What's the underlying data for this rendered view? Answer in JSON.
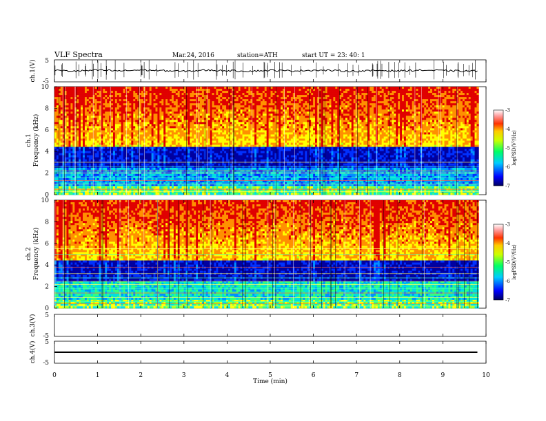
{
  "header": {
    "title": "VLF  Spectra",
    "date": "Mar.24, 2016",
    "station": "station=ATH",
    "start": "start  UT =   23: 40: 1"
  },
  "chart_data": [
    {
      "type": "line",
      "ylabel": "ch.1(V)",
      "ylim": [
        -5,
        5
      ],
      "yticks": [
        "5",
        "-5"
      ],
      "x": [
        0,
        0.5,
        1,
        1.5,
        2,
        2.5,
        3,
        3.5,
        4,
        4.5,
        5,
        5.5,
        6,
        6.5,
        7,
        7.5,
        8,
        8.5,
        9,
        9.5,
        9.8
      ],
      "values": [
        0.2,
        -0.1,
        0.3,
        0.0,
        0.4,
        0.1,
        -0.2,
        0.3,
        0.1,
        -0.1,
        0.2,
        0.0,
        0.3,
        0.1,
        -0.2,
        0.2,
        0.0,
        0.3,
        0.1,
        -0.1,
        0.0
      ]
    },
    {
      "type": "heatmap",
      "channel": "ch.1",
      "ylabel": "ch.1\nFrequency  (kHz)",
      "ylim": [
        0,
        10
      ],
      "yticks": [
        "0",
        "2",
        "4",
        "6",
        "8",
        "10"
      ],
      "colorbar": {
        "label": "logPSD(V²/Hz)",
        "ticks": [
          "-3",
          "-4",
          "-5",
          "-6",
          "-7"
        ],
        "range": [
          -7,
          -3
        ]
      }
    },
    {
      "type": "heatmap",
      "channel": "ch.2",
      "ylabel": "ch.2\nFrequency  (kHz)",
      "ylim": [
        0,
        10
      ],
      "yticks": [
        "0",
        "2",
        "4",
        "6",
        "8",
        "10"
      ],
      "colorbar": {
        "label": "logPSD(V²/Hz)",
        "ticks": [
          "-3",
          "-4",
          "-5",
          "-6",
          "-7"
        ],
        "range": [
          -7,
          -3
        ]
      }
    },
    {
      "type": "line",
      "ylabel": "ch.3(V)",
      "ylim": [
        -5,
        5
      ],
      "yticks": [
        "5",
        "-5"
      ],
      "x": [],
      "values": []
    },
    {
      "type": "line",
      "ylabel": "ch.4(V)",
      "ylim": [
        -5,
        5
      ],
      "yticks": [
        "5",
        "-5"
      ],
      "x": [
        0,
        9.8
      ],
      "values": [
        0,
        0
      ]
    }
  ],
  "xaxis": {
    "label": "Time  (min)",
    "xlim": [
      0,
      10
    ],
    "ticks": [
      "0",
      "1",
      "2",
      "3",
      "4",
      "5",
      "6",
      "7",
      "8",
      "9",
      "10"
    ]
  },
  "colors": {
    "lowest": "#00008b",
    "low": "#1e64ff",
    "mid": "#00e0e0",
    "midhigh": "#40ff40",
    "high": "#ffff00",
    "higher": "#ff8c00",
    "highest": "#e00000"
  }
}
